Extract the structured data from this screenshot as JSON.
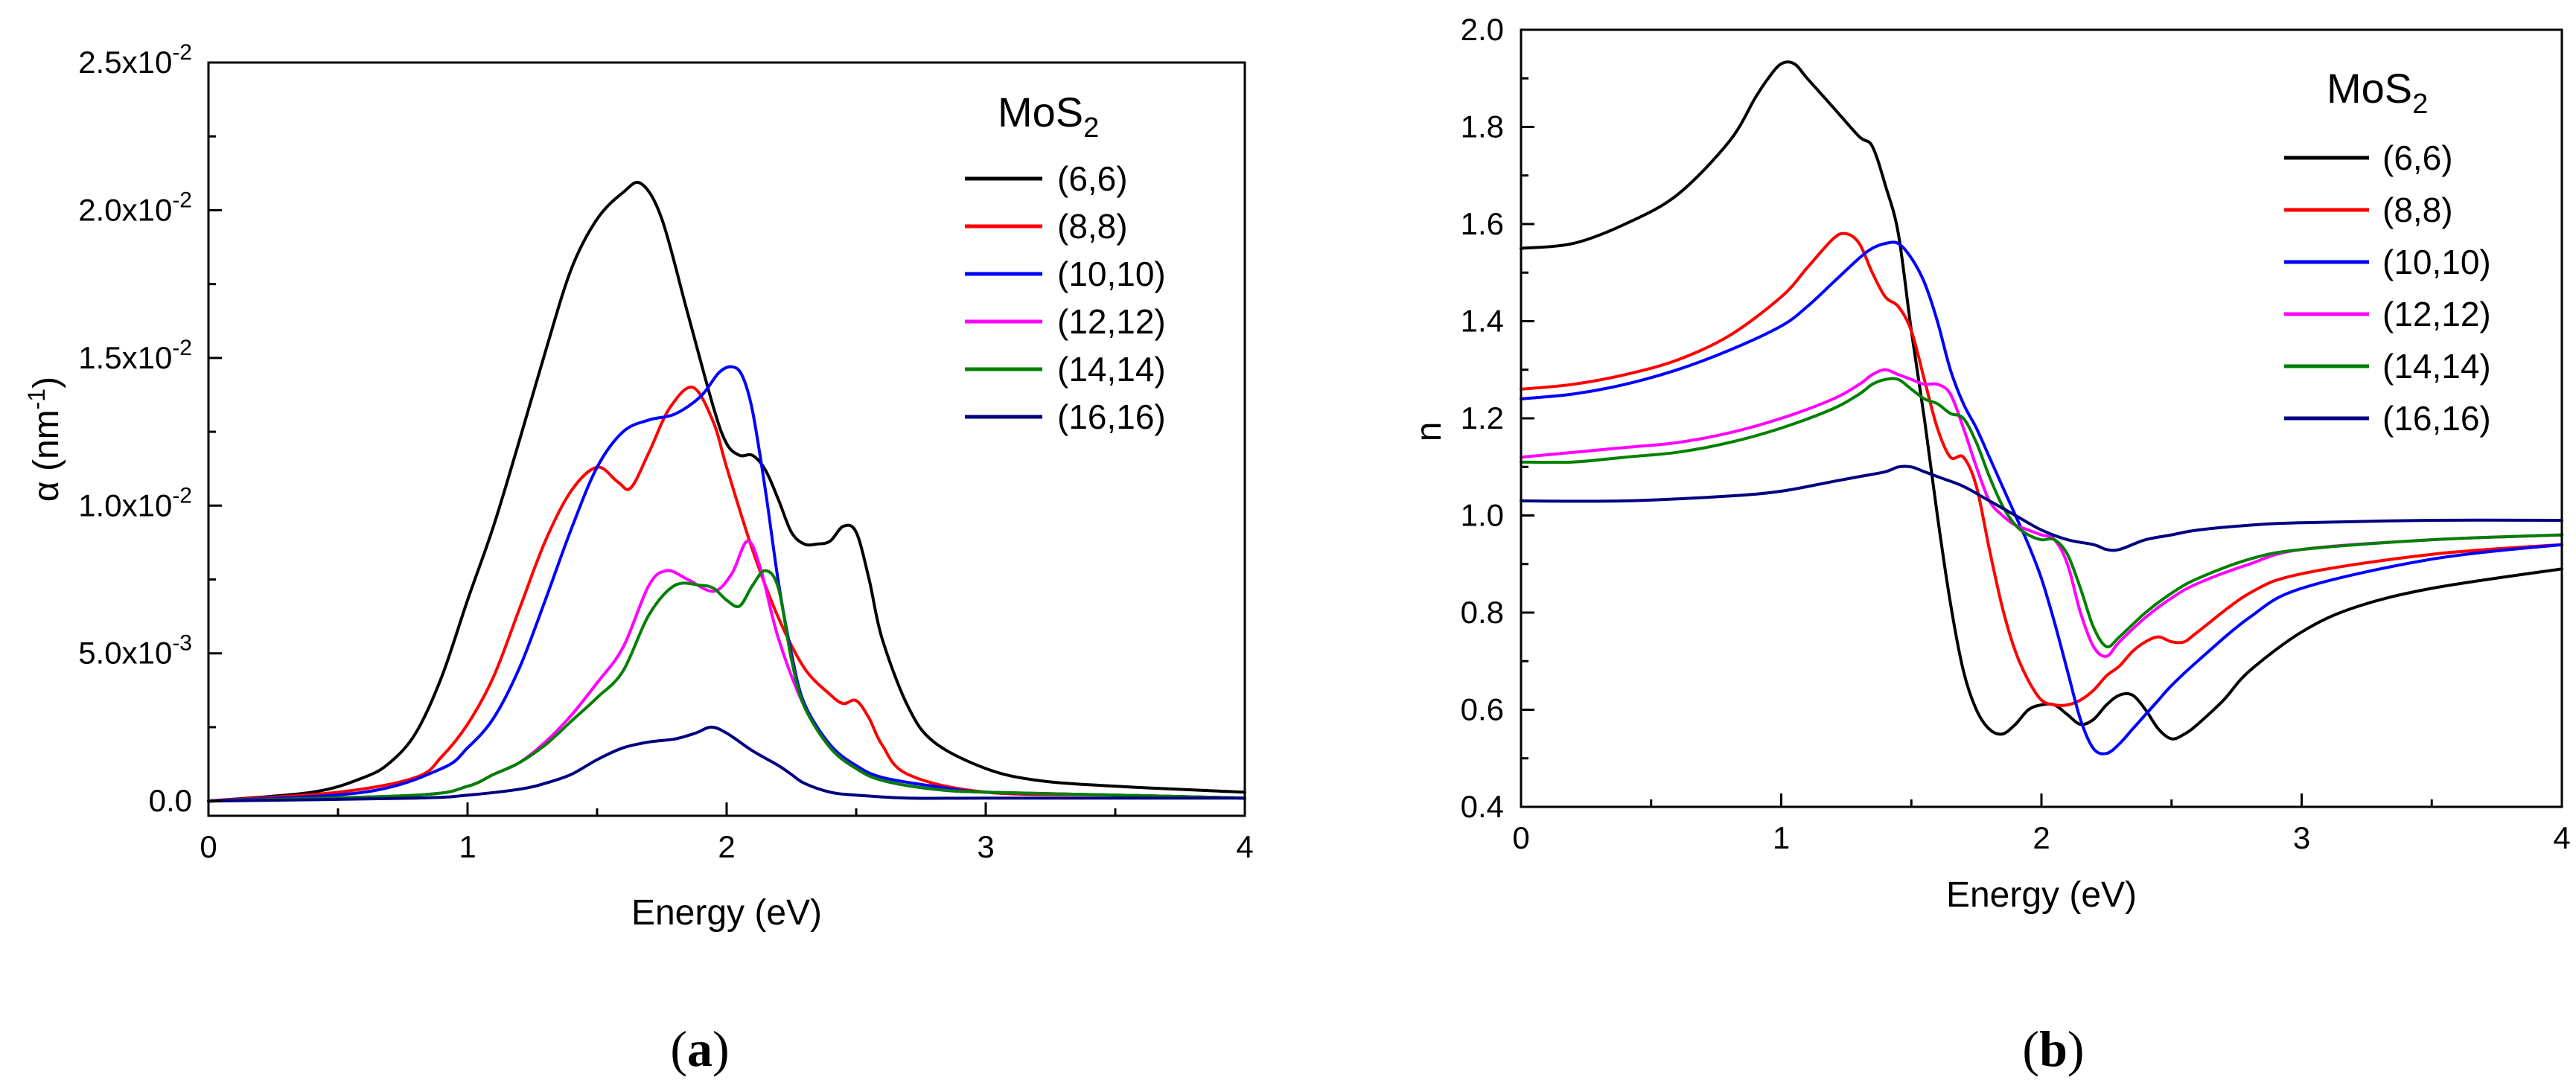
{
  "chart_data": [
    {
      "panel": "a",
      "caption": "(a)",
      "caption_letter": "a",
      "type": "line",
      "xlabel": "Energy (eV)",
      "ylabel_symbol": "α",
      "ylabel_open": " (nm",
      "ylabel_exp": "-1",
      "ylabel_close": ")",
      "xlim": [
        0,
        4
      ],
      "ylim": [
        -0.0005,
        0.025
      ],
      "xticks": [
        0,
        1,
        2,
        3,
        4
      ],
      "xtick_labels": [
        "0",
        "1",
        "2",
        "3",
        "4"
      ],
      "yticks": [
        0,
        0.005,
        0.01,
        0.015,
        0.02,
        0.025
      ],
      "ytick_labels": [
        {
          "mant": "0.0",
          "exp": ""
        },
        {
          "mant": "5.0x10",
          "exp": "-3"
        },
        {
          "mant": "1.0x10",
          "exp": "-2"
        },
        {
          "mant": "1.5x10",
          "exp": "-2"
        },
        {
          "mant": "2.0x10",
          "exp": "-2"
        },
        {
          "mant": "2.5x10",
          "exp": "-2"
        }
      ],
      "legend_title": "MoS",
      "legend_title_sub": "2",
      "series": [
        {
          "name": "(6,6)",
          "color": "#000000",
          "x": [
            0,
            0.4,
            0.6,
            0.7,
            0.8,
            0.9,
            1.0,
            1.1,
            1.2,
            1.3,
            1.4,
            1.5,
            1.6,
            1.67,
            1.75,
            1.85,
            1.95,
            2.0,
            2.05,
            2.1,
            2.15,
            2.2,
            2.25,
            2.3,
            2.35,
            2.4,
            2.45,
            2.5,
            2.55,
            2.6,
            2.7,
            2.8,
            3.0,
            3.2,
            3.5,
            4.0
          ],
          "y": [
            0,
            0.0003,
            0.0008,
            0.0013,
            0.0023,
            0.0042,
            0.0068,
            0.0093,
            0.0122,
            0.0152,
            0.018,
            0.0197,
            0.0206,
            0.0209,
            0.0197,
            0.0165,
            0.0133,
            0.0121,
            0.0117,
            0.0117,
            0.0112,
            0.0102,
            0.0091,
            0.0087,
            0.0087,
            0.0088,
            0.0093,
            0.0091,
            0.0075,
            0.0055,
            0.0032,
            0.002,
            0.0011,
            0.0007,
            0.0005,
            0.0003
          ]
        },
        {
          "name": "(8,8)",
          "color": "#ff0000",
          "x": [
            0,
            0.5,
            0.8,
            0.9,
            1.0,
            1.1,
            1.2,
            1.3,
            1.4,
            1.5,
            1.58,
            1.63,
            1.7,
            1.78,
            1.87,
            1.95,
            2.0,
            2.1,
            2.2,
            2.3,
            2.4,
            2.45,
            2.5,
            2.55,
            2.6,
            2.7,
            3.0,
            3.5,
            4.0
          ],
          "y": [
            0,
            0.0003,
            0.0008,
            0.0015,
            0.0026,
            0.0042,
            0.0065,
            0.0088,
            0.0105,
            0.0113,
            0.0108,
            0.0106,
            0.0118,
            0.0133,
            0.014,
            0.0128,
            0.0113,
            0.0085,
            0.0062,
            0.0045,
            0.0036,
            0.0033,
            0.0034,
            0.0028,
            0.0019,
            0.0009,
            0.0003,
            0.0002,
            0.0001
          ]
        },
        {
          "name": "(10,10)",
          "color": "#0000ff",
          "x": [
            0,
            0.6,
            0.9,
            1.0,
            1.1,
            1.2,
            1.3,
            1.4,
            1.5,
            1.6,
            1.7,
            1.8,
            1.9,
            1.97,
            2.02,
            2.06,
            2.1,
            2.15,
            2.2,
            2.25,
            2.3,
            2.4,
            2.5,
            2.6,
            2.8,
            3.0,
            3.5,
            4.0
          ],
          "y": [
            0,
            0.0003,
            0.0011,
            0.0018,
            0.0028,
            0.0045,
            0.0068,
            0.0092,
            0.0113,
            0.0125,
            0.0129,
            0.0131,
            0.0137,
            0.0145,
            0.0147,
            0.0144,
            0.0132,
            0.0105,
            0.0074,
            0.005,
            0.0033,
            0.0019,
            0.0012,
            0.0008,
            0.0005,
            0.0003,
            0.0002,
            0.0001
          ]
        },
        {
          "name": "(12,12)",
          "color": "#ff00ff",
          "x": [
            0,
            0.8,
            1.0,
            1.1,
            1.2,
            1.3,
            1.4,
            1.5,
            1.6,
            1.7,
            1.77,
            1.85,
            1.95,
            2.02,
            2.08,
            2.13,
            2.2,
            2.3,
            2.4,
            2.5,
            2.6,
            2.8,
            3.0,
            3.5,
            4.0
          ],
          "y": [
            0,
            0.0002,
            0.0005,
            0.0009,
            0.0013,
            0.002,
            0.0029,
            0.004,
            0.0052,
            0.0073,
            0.0078,
            0.0075,
            0.0071,
            0.0077,
            0.0088,
            0.0079,
            0.0055,
            0.0032,
            0.0018,
            0.0011,
            0.0007,
            0.0004,
            0.0003,
            0.0002,
            0.0001
          ]
        },
        {
          "name": "(14,14)",
          "color": "#008000",
          "x": [
            0,
            0.8,
            1.0,
            1.1,
            1.2,
            1.3,
            1.4,
            1.5,
            1.6,
            1.7,
            1.8,
            1.9,
            1.95,
            2.0,
            2.05,
            2.1,
            2.15,
            2.2,
            2.25,
            2.3,
            2.4,
            2.5,
            2.6,
            2.8,
            3.0,
            3.5,
            4.0
          ],
          "y": [
            0,
            0.0002,
            0.0005,
            0.0009,
            0.0013,
            0.0019,
            0.0027,
            0.0035,
            0.0044,
            0.0063,
            0.0073,
            0.0073,
            0.0072,
            0.0068,
            0.0066,
            0.0073,
            0.0078,
            0.0072,
            0.0048,
            0.0032,
            0.0018,
            0.0011,
            0.0007,
            0.0004,
            0.0003,
            0.0002,
            0.0001
          ]
        },
        {
          "name": "(16,16)",
          "color": "#000080",
          "x": [
            0,
            0.8,
            1.0,
            1.2,
            1.3,
            1.4,
            1.5,
            1.6,
            1.7,
            1.8,
            1.88,
            1.94,
            2.0,
            2.1,
            2.2,
            2.25,
            2.3,
            2.4,
            2.5,
            2.7,
            3.0,
            3.5,
            4.0
          ],
          "y": [
            0,
            0.0001,
            0.0002,
            0.0004,
            0.0006,
            0.0009,
            0.0014,
            0.0018,
            0.002,
            0.0021,
            0.0023,
            0.0025,
            0.0023,
            0.0017,
            0.0012,
            0.0009,
            0.0006,
            0.0003,
            0.0002,
            0.0001,
            0.0001,
            0.0001,
            0.0001
          ]
        }
      ]
    },
    {
      "panel": "b",
      "caption": "(b)",
      "caption_letter": "b",
      "type": "line",
      "xlabel": "Energy (eV)",
      "ylabel": "n",
      "xlim": [
        0,
        4
      ],
      "ylim": [
        0.4,
        2.0
      ],
      "xticks": [
        0,
        1,
        2,
        3,
        4
      ],
      "xtick_labels": [
        "0",
        "1",
        "2",
        "3",
        "4"
      ],
      "yticks": [
        0.4,
        0.6,
        0.8,
        1.0,
        1.2,
        1.4,
        1.6,
        1.8,
        2.0
      ],
      "ytick_labels": [
        "0.4",
        "0.6",
        "0.8",
        "1.0",
        "1.2",
        "1.4",
        "1.6",
        "1.8",
        "2.0"
      ],
      "legend_title": "MoS",
      "legend_title_sub": "2",
      "series": [
        {
          "name": "(6,6)",
          "color": "#000000",
          "x": [
            0,
            0.2,
            0.4,
            0.6,
            0.8,
            0.9,
            0.95,
            1.0,
            1.05,
            1.1,
            1.2,
            1.3,
            1.35,
            1.4,
            1.45,
            1.5,
            1.55,
            1.6,
            1.65,
            1.7,
            1.75,
            1.8,
            1.85,
            1.9,
            1.95,
            2.0,
            2.05,
            2.1,
            2.15,
            2.2,
            2.25,
            2.3,
            2.35,
            2.4,
            2.45,
            2.5,
            2.55,
            2.6,
            2.7,
            2.8,
            3.0,
            3.2,
            3.5,
            4.0
          ],
          "y": [
            1.55,
            1.56,
            1.6,
            1.66,
            1.77,
            1.86,
            1.9,
            1.93,
            1.93,
            1.9,
            1.84,
            1.78,
            1.76,
            1.68,
            1.58,
            1.38,
            1.2,
            1.0,
            0.82,
            0.68,
            0.6,
            0.56,
            0.55,
            0.57,
            0.6,
            0.61,
            0.61,
            0.59,
            0.57,
            0.58,
            0.61,
            0.63,
            0.63,
            0.6,
            0.56,
            0.54,
            0.55,
            0.57,
            0.62,
            0.68,
            0.76,
            0.81,
            0.85,
            0.89
          ]
        },
        {
          "name": "(8,8)",
          "color": "#ff0000",
          "x": [
            0,
            0.2,
            0.4,
            0.6,
            0.8,
            1.0,
            1.1,
            1.2,
            1.25,
            1.3,
            1.35,
            1.4,
            1.45,
            1.5,
            1.55,
            1.6,
            1.65,
            1.7,
            1.75,
            1.8,
            1.85,
            1.9,
            1.95,
            2.0,
            2.05,
            2.1,
            2.15,
            2.2,
            2.25,
            2.3,
            2.35,
            2.4,
            2.45,
            2.5,
            2.55,
            2.6,
            2.8,
            3.0,
            3.5,
            4.0
          ],
          "y": [
            1.26,
            1.27,
            1.29,
            1.32,
            1.37,
            1.45,
            1.51,
            1.57,
            1.58,
            1.56,
            1.5,
            1.45,
            1.43,
            1.38,
            1.28,
            1.18,
            1.12,
            1.12,
            1.06,
            0.93,
            0.81,
            0.72,
            0.66,
            0.62,
            0.61,
            0.61,
            0.62,
            0.64,
            0.67,
            0.69,
            0.72,
            0.74,
            0.75,
            0.74,
            0.74,
            0.76,
            0.84,
            0.88,
            0.92,
            0.94
          ]
        },
        {
          "name": "(10,10)",
          "color": "#0000ff",
          "x": [
            0,
            0.2,
            0.4,
            0.6,
            0.8,
            1.0,
            1.1,
            1.2,
            1.3,
            1.35,
            1.4,
            1.45,
            1.5,
            1.55,
            1.6,
            1.65,
            1.7,
            1.75,
            1.8,
            1.85,
            1.9,
            1.95,
            2.0,
            2.05,
            2.1,
            2.15,
            2.2,
            2.25,
            2.3,
            2.35,
            2.4,
            2.45,
            2.5,
            2.6,
            2.8,
            3.0,
            3.5,
            4.0
          ],
          "y": [
            1.24,
            1.25,
            1.27,
            1.3,
            1.34,
            1.39,
            1.43,
            1.48,
            1.53,
            1.55,
            1.56,
            1.56,
            1.53,
            1.48,
            1.4,
            1.3,
            1.23,
            1.18,
            1.12,
            1.06,
            1.0,
            0.94,
            0.87,
            0.78,
            0.68,
            0.58,
            0.52,
            0.51,
            0.53,
            0.56,
            0.59,
            0.62,
            0.65,
            0.7,
            0.79,
            0.85,
            0.91,
            0.94
          ]
        },
        {
          "name": "(12,12)",
          "color": "#ff00ff",
          "x": [
            0,
            0.2,
            0.4,
            0.6,
            0.8,
            1.0,
            1.2,
            1.3,
            1.35,
            1.4,
            1.45,
            1.5,
            1.55,
            1.6,
            1.65,
            1.7,
            1.75,
            1.8,
            1.85,
            1.9,
            1.95,
            2.0,
            2.05,
            2.1,
            2.15,
            2.2,
            2.25,
            2.3,
            2.4,
            2.5,
            2.6,
            2.8,
            3.0,
            3.5,
            4.0
          ],
          "y": [
            1.12,
            1.13,
            1.14,
            1.15,
            1.17,
            1.2,
            1.24,
            1.27,
            1.29,
            1.3,
            1.29,
            1.28,
            1.27,
            1.27,
            1.25,
            1.18,
            1.1,
            1.03,
            1.0,
            0.98,
            0.97,
            0.96,
            0.95,
            0.9,
            0.8,
            0.73,
            0.71,
            0.74,
            0.79,
            0.83,
            0.86,
            0.9,
            0.93,
            0.95,
            0.96
          ]
        },
        {
          "name": "(14,14)",
          "color": "#008000",
          "x": [
            0,
            0.2,
            0.4,
            0.6,
            0.8,
            1.0,
            1.2,
            1.3,
            1.35,
            1.4,
            1.45,
            1.5,
            1.55,
            1.6,
            1.65,
            1.7,
            1.75,
            1.8,
            1.85,
            1.9,
            1.95,
            2.0,
            2.05,
            2.1,
            2.15,
            2.2,
            2.25,
            2.3,
            2.4,
            2.5,
            2.6,
            2.8,
            3.0,
            3.5,
            4.0
          ],
          "y": [
            1.11,
            1.11,
            1.12,
            1.13,
            1.15,
            1.18,
            1.22,
            1.25,
            1.27,
            1.28,
            1.28,
            1.26,
            1.24,
            1.23,
            1.21,
            1.2,
            1.15,
            1.08,
            1.02,
            0.98,
            0.96,
            0.95,
            0.95,
            0.92,
            0.85,
            0.77,
            0.73,
            0.75,
            0.8,
            0.84,
            0.87,
            0.91,
            0.93,
            0.95,
            0.96
          ]
        },
        {
          "name": "(16,16)",
          "color": "#000080",
          "x": [
            0,
            0.4,
            0.8,
            1.0,
            1.2,
            1.3,
            1.4,
            1.45,
            1.5,
            1.55,
            1.6,
            1.7,
            1.8,
            1.9,
            2.0,
            2.1,
            2.2,
            2.25,
            2.3,
            2.4,
            2.5,
            2.6,
            2.8,
            3.0,
            3.5,
            4.0
          ],
          "y": [
            1.03,
            1.03,
            1.04,
            1.05,
            1.07,
            1.08,
            1.09,
            1.1,
            1.1,
            1.09,
            1.08,
            1.06,
            1.03,
            1.0,
            0.97,
            0.95,
            0.94,
            0.93,
            0.93,
            0.95,
            0.96,
            0.97,
            0.98,
            0.985,
            0.99,
            0.99
          ]
        }
      ]
    }
  ]
}
